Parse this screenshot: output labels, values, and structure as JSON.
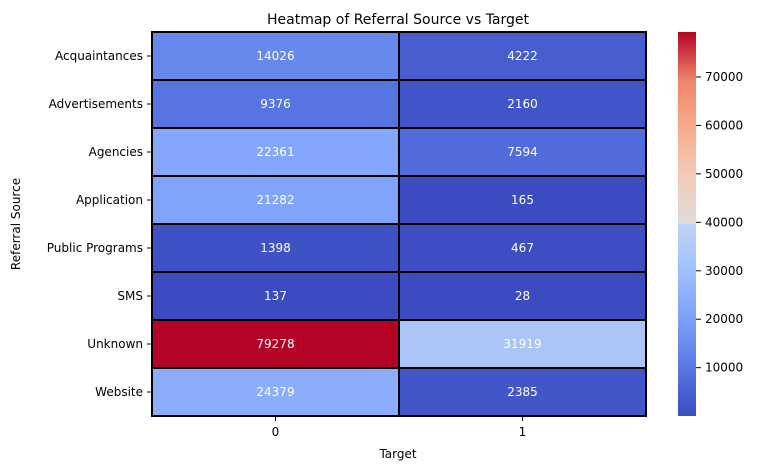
{
  "chart_data": {
    "type": "heatmap",
    "title": "Heatmap of Referral Source vs Target",
    "xlabel": "Target",
    "ylabel": "Referral Source",
    "x_categories": [
      "0",
      "1"
    ],
    "y_categories": [
      "Acquaintances",
      "Advertisements",
      "Agencies",
      "Application",
      "Public Programs",
      "SMS",
      "Unknown",
      "Website"
    ],
    "values": [
      [
        14026,
        4222
      ],
      [
        9376,
        2160
      ],
      [
        22361,
        7594
      ],
      [
        21282,
        165
      ],
      [
        1398,
        467
      ],
      [
        137,
        28
      ],
      [
        79278,
        31919
      ],
      [
        24379,
        2385
      ]
    ],
    "colormap": "coolwarm",
    "vmin": 28,
    "vmax": 79278,
    "colorbar_ticks": [
      10000,
      20000,
      30000,
      40000,
      50000,
      60000,
      70000
    ],
    "colorbar_tick_labels": [
      "10000",
      "20000",
      "30000",
      "40000",
      "50000",
      "60000",
      "70000"
    ],
    "annot_color": "#ffffff",
    "cell_border_color": "#000000"
  }
}
